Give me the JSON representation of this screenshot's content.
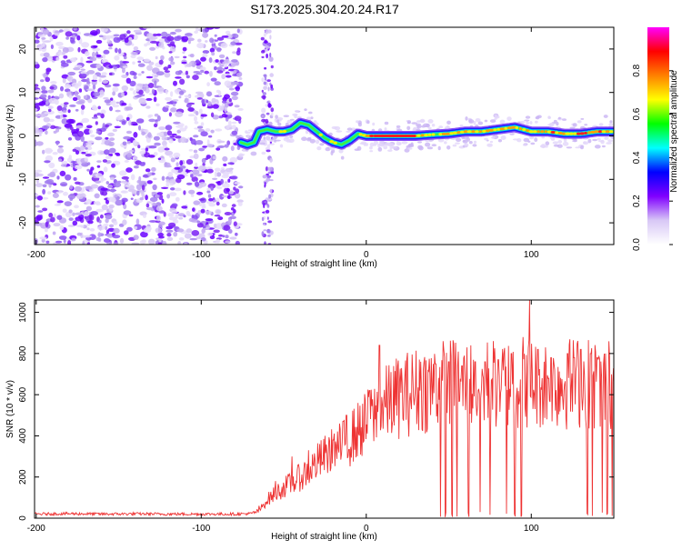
{
  "figure": {
    "title": "S173.2025.304.20.24.R17"
  },
  "chart_data": [
    {
      "type": "heatmap",
      "title": "S173.2025.304.20.24.R17",
      "xlabel": "Height of straight line (km)",
      "ylabel": "Frequency (Hz)",
      "xlim": [
        -201,
        150
      ],
      "ylim": [
        -25,
        25
      ],
      "xticks": [
        -200,
        -100,
        0,
        100
      ],
      "yticks": [
        -20,
        -10,
        0,
        10,
        20
      ],
      "colorbar": {
        "label": "Normalized spectral amplitude",
        "range": [
          0.0,
          1.0
        ],
        "ticks": [
          0.0,
          0.2,
          0.4,
          0.6,
          0.8
        ],
        "tick_labels": [
          "0.0",
          "0.2",
          "0.4",
          "0.6",
          "0.8"
        ],
        "colormap": [
          "#ffffff",
          "#d8c8f6",
          "#8000ff",
          "#0000ff",
          "#00ffff",
          "#00ff00",
          "#ffff00",
          "#ff8000",
          "#ff0000",
          "#ff00ff"
        ]
      },
      "noise_region_x": [
        -201,
        -76
      ],
      "noise_strip_x": [
        -63,
        -57
      ],
      "signal_track": {
        "x": [
          -76,
          -72,
          -68,
          -65,
          -60,
          -55,
          -50,
          -45,
          -40,
          -35,
          -30,
          -25,
          -20,
          -15,
          -10,
          -5,
          0,
          10,
          20,
          30,
          40,
          50,
          60,
          70,
          80,
          90,
          100,
          110,
          120,
          130,
          140,
          150
        ],
        "freq": [
          -1.5,
          -2,
          -1.5,
          1,
          1.5,
          1,
          1,
          1.5,
          3,
          2.5,
          1,
          -0.5,
          -1.5,
          -2,
          -1,
          0.5,
          0,
          0,
          0,
          0,
          0.3,
          0.5,
          1,
          1,
          1.5,
          2,
          1,
          1,
          0.5,
          0.5,
          1,
          1
        ],
        "peak": [
          0.3,
          0.35,
          0.3,
          0.35,
          0.4,
          0.5,
          0.55,
          0.5,
          0.45,
          0.45,
          0.5,
          0.55,
          0.6,
          0.6,
          0.55,
          0.65,
          0.8,
          0.95,
          0.9,
          0.8,
          0.65,
          0.7,
          0.7,
          0.75,
          0.7,
          0.75,
          0.7,
          0.75,
          0.8,
          0.85,
          0.8,
          0.8
        ]
      }
    },
    {
      "type": "line",
      "xlabel": "Height of straight line (km)",
      "ylabel": "SNR (10 * v/v)",
      "xlim": [
        -201,
        150
      ],
      "ylim": [
        0,
        1060
      ],
      "xticks": [
        -200,
        -100,
        0,
        100
      ],
      "yticks": [
        0,
        200,
        400,
        600,
        800,
        1000
      ],
      "color": "#ee3333",
      "series": [
        {
          "name": "SNR",
          "x": [
            -201,
            -180,
            -160,
            -140,
            -120,
            -100,
            -80,
            -70,
            -65,
            -60,
            -55,
            -50,
            -45,
            -40,
            -35,
            -30,
            -25,
            -20,
            -15,
            -10,
            -5,
            0,
            5,
            10,
            15,
            20,
            30,
            40,
            50,
            60,
            70,
            80,
            90,
            100,
            110,
            120,
            130,
            140,
            150
          ],
          "y": [
            20,
            22,
            20,
            21,
            20,
            20,
            20,
            22,
            35,
            90,
            120,
            150,
            170,
            200,
            230,
            270,
            300,
            330,
            350,
            380,
            430,
            460,
            500,
            540,
            570,
            590,
            620,
            640,
            650,
            650,
            650,
            655,
            660,
            665,
            660,
            655,
            660,
            650,
            650
          ]
        }
      ],
      "spikes": {
        "x": [
          -65,
          -55,
          -45,
          -35,
          -25,
          -20,
          -12,
          -5,
          2,
          8,
          15,
          33,
          42,
          50,
          58,
          66,
          72,
          80,
          88,
          95,
          99,
          104,
          112,
          122,
          126,
          130,
          136,
          140,
          145
        ],
        "y": [
          60,
          180,
          300,
          330,
          400,
          380,
          500,
          560,
          620,
          840,
          710,
          760,
          750,
          760,
          740,
          760,
          760,
          770,
          800,
          880,
          1060,
          820,
          780,
          800,
          780,
          820,
          800,
          780,
          800
        ]
      },
      "dropouts_x": [
        33,
        45,
        48,
        52,
        55,
        58,
        62,
        66,
        69,
        72,
        75,
        80,
        85,
        90,
        94,
        122,
        126,
        130,
        134,
        137,
        140,
        143,
        146,
        149
      ]
    }
  ]
}
